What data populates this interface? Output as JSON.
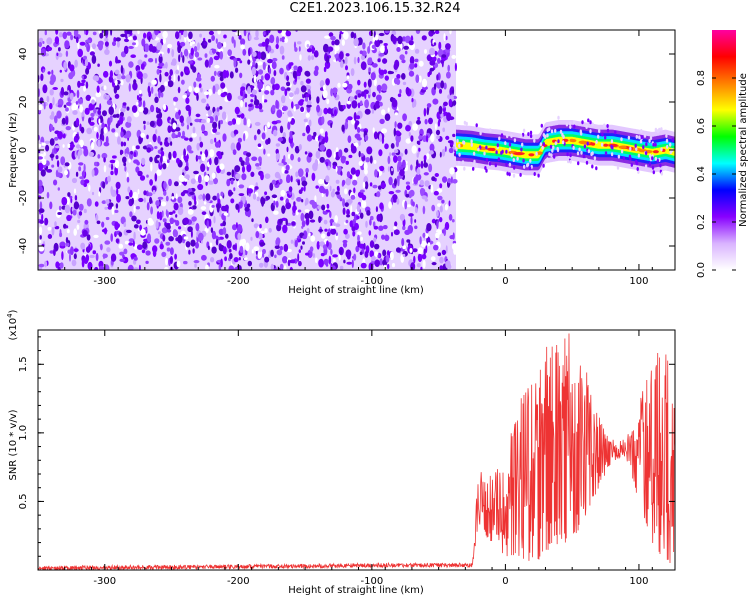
{
  "title": "C2E1.2023.106.15.32.R24",
  "chart_data": [
    {
      "type": "heatmap",
      "xlabel": "Height of straight line (km)",
      "ylabel": "Frequency (Hz)",
      "xlim": [
        -350,
        127
      ],
      "ylim": [
        -50,
        50
      ],
      "x_ticks": [
        -300,
        -200,
        -100,
        0,
        100
      ],
      "x_tick_labels": [
        "-300",
        "-200",
        "-100",
        "0",
        "100"
      ],
      "y_ticks": [
        -40,
        -20,
        0,
        20,
        40
      ],
      "y_tick_labels": [
        "-40",
        "-20",
        "0",
        "20",
        "40"
      ],
      "noise_region_x": [
        -350,
        -37
      ],
      "signal_region_x": [
        -37,
        127
      ],
      "ridge": {
        "x": [
          -37,
          -25,
          -15,
          -5,
          5,
          15,
          25,
          30,
          40,
          50,
          60,
          70,
          80,
          90,
          100,
          110,
          120,
          127
        ],
        "frequency": [
          2,
          1.5,
          0.5,
          0,
          -1,
          -2,
          -2,
          3,
          4,
          4,
          3,
          2,
          2,
          1,
          0,
          -1,
          0,
          -1
        ]
      },
      "colorbar": {
        "label": "Normalized spectral amplitude",
        "range": [
          0,
          1
        ],
        "ticks": [
          0.0,
          0.2,
          0.4,
          0.6,
          0.8
        ],
        "tick_labels": [
          "0.0",
          "0.2",
          "0.4",
          "0.6",
          "0.8"
        ],
        "colors": [
          "#ffffff",
          "#d9b3ff",
          "#8800ff",
          "#0000ff",
          "#00ffff",
          "#00ff00",
          "#ffff00",
          "#ff8000",
          "#ff0000",
          "#ff00a0"
        ]
      },
      "grid": false
    },
    {
      "type": "line",
      "xlabel": "Height of straight line (km)",
      "ylabel": "SNR (10 * v/v)",
      "y_exponent_label": "(x10",
      "y_exponent_power": "4",
      "xlim": [
        -350,
        127
      ],
      "ylim": [
        0,
        1.75
      ],
      "x_ticks": [
        -300,
        -200,
        -100,
        0,
        100
      ],
      "x_tick_labels": [
        "-300",
        "-200",
        "-100",
        "0",
        "100"
      ],
      "y_ticks": [
        0.5,
        1.0,
        1.5
      ],
      "y_tick_labels": [
        "0.5",
        "1.0",
        "1.5"
      ],
      "series_color": "#ee3333",
      "envelope": {
        "x": [
          -350,
          -200,
          -100,
          -25,
          -20,
          -10,
          0,
          10,
          20,
          30,
          40,
          50,
          60,
          70,
          80,
          90,
          100,
          110,
          120,
          127
        ],
        "low": [
          0.0,
          0.01,
          0.02,
          0.02,
          0.3,
          0.2,
          0.1,
          0.1,
          0.05,
          0.1,
          0.2,
          0.2,
          0.4,
          0.6,
          0.8,
          0.8,
          0.5,
          0.2,
          0.05,
          0.05
        ],
        "high": [
          0.03,
          0.04,
          0.05,
          0.05,
          0.75,
          0.7,
          0.85,
          1.2,
          1.55,
          1.65,
          1.7,
          1.75,
          1.5,
          1.15,
          0.95,
          0.95,
          1.25,
          1.6,
          1.6,
          1.5
        ]
      },
      "grid": false
    }
  ]
}
